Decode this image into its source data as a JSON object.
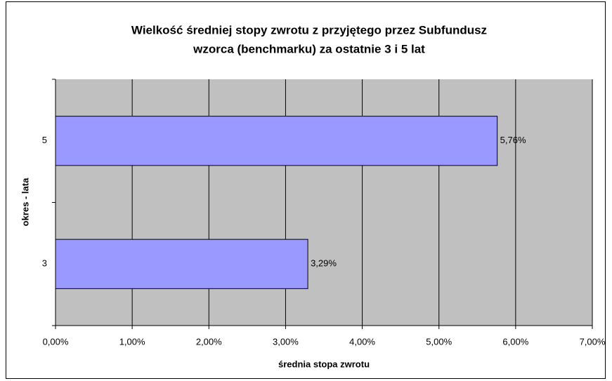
{
  "chart_data": {
    "type": "hbar",
    "title": [
      "Wielkość średniej stopy zwrotu z przyjętego przez Subfundusz",
      "wzorca (benchmarku) za ostatnie 3 i 5 lat"
    ],
    "x_label": "średnia stopa zwrotu",
    "y_label": "okres - lata",
    "categories": [
      "3",
      "5"
    ],
    "values": [
      3.29,
      5.76
    ],
    "value_labels": [
      "3,29%",
      "5,76%"
    ],
    "color": "#9999ff",
    "xlim": [
      0,
      7
    ],
    "xticks": [
      {
        "value": 0,
        "label": "0,00%"
      },
      {
        "value": 1,
        "label": "1,00%"
      },
      {
        "value": 2,
        "label": "2,00%"
      },
      {
        "value": 3,
        "label": "3,00%"
      },
      {
        "value": 4,
        "label": "4,00%"
      },
      {
        "value": 5,
        "label": "5,00%"
      },
      {
        "value": 6,
        "label": "6,00%"
      },
      {
        "value": 7,
        "label": "7,00%"
      }
    ],
    "grid": true
  }
}
